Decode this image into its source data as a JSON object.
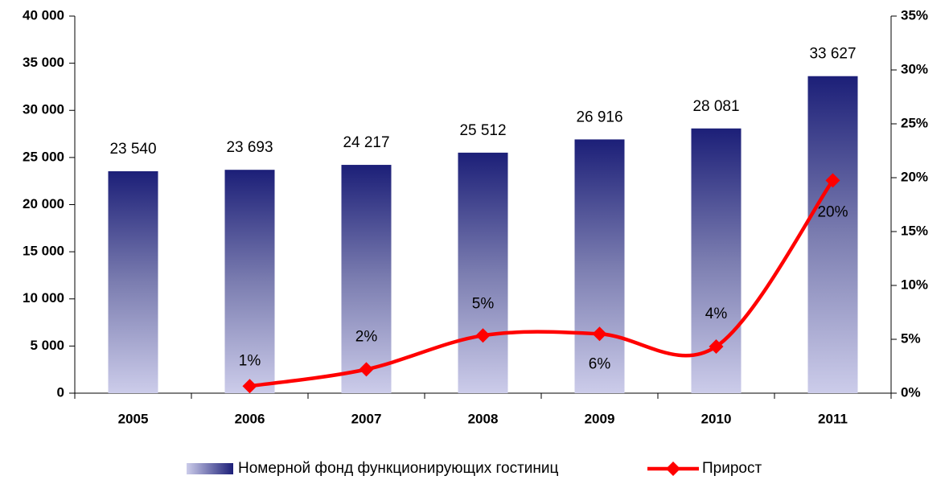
{
  "chart_data": {
    "type": "bar",
    "categories": [
      "2005",
      "2006",
      "2007",
      "2008",
      "2009",
      "2010",
      "2011"
    ],
    "series": [
      {
        "name": "Номерной фонд функционирующих гостиниц",
        "type": "bar",
        "color": "#1c1f78",
        "values": [
          23540,
          23693,
          24217,
          25512,
          26916,
          28081,
          33627
        ],
        "value_labels": [
          "23 540",
          "23 693",
          "24 217",
          "25 512",
          "26 916",
          "28 081",
          "33 627"
        ]
      },
      {
        "name": "Прирост",
        "type": "line",
        "axis": "y2",
        "color": "#ff0000",
        "values": [
          null,
          0.65,
          2.21,
          5.35,
          5.5,
          4.33,
          19.75
        ],
        "value_labels": [
          null,
          "1%",
          "2%",
          "5%",
          "6%",
          "4%",
          "20%"
        ]
      }
    ],
    "ylim": [
      0,
      40000
    ],
    "yticks": [
      0,
      {
        "value": 5000,
        "label": "5 000"
      },
      {
        "value": 10000,
        "label": "10 000"
      },
      {
        "value": 15000,
        "label": "15 000"
      },
      {
        "value": 20000,
        "label": "20 000"
      },
      {
        "value": 25000,
        "label": "25 000"
      },
      {
        "value": 30000,
        "label": "30 000"
      },
      {
        "value": 35000,
        "label": "35 000"
      },
      {
        "value": 40000,
        "label": "40 000"
      }
    ],
    "y2lim": [
      0,
      35
    ],
    "y2ticks": [
      {
        "value": 0,
        "label": "0%"
      },
      {
        "value": 5,
        "label": "5%"
      },
      {
        "value": 10,
        "label": "10%"
      },
      {
        "value": 15,
        "label": "15%"
      },
      {
        "value": 20,
        "label": "20%"
      },
      {
        "value": 25,
        "label": "25%"
      },
      {
        "value": 30,
        "label": "30%"
      },
      {
        "value": 35,
        "label": "35%"
      }
    ],
    "legend": "bottom"
  }
}
